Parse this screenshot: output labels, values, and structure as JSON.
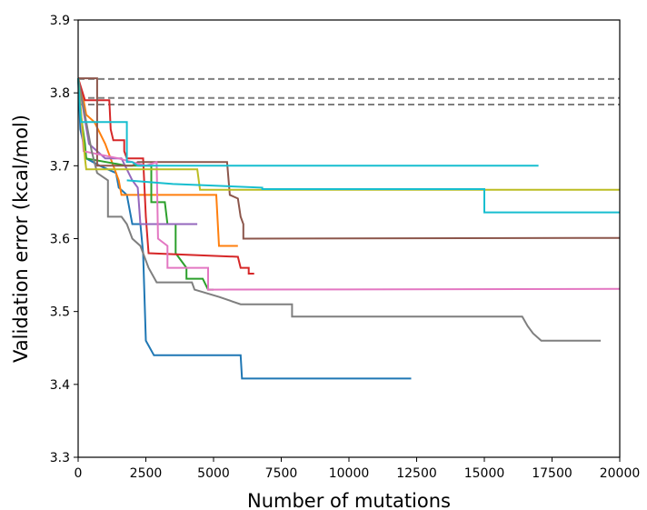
{
  "chart_data": {
    "type": "line",
    "xlabel": "Number of mutations",
    "ylabel": "Validation error (kcal/mol)",
    "xlim": [
      0,
      20000
    ],
    "ylim": [
      3.3,
      3.9
    ],
    "xticks": [
      0,
      2500,
      5000,
      7500,
      10000,
      12500,
      15000,
      17500,
      20000
    ],
    "yticks": [
      3.3,
      3.4,
      3.5,
      3.6,
      3.7,
      3.8,
      3.9
    ],
    "xtick_labels": [
      "0",
      "2500",
      "5000",
      "7500",
      "10000",
      "12500",
      "15000",
      "17500",
      "20000"
    ],
    "ytick_labels": [
      "3.3",
      "3.4",
      "3.5",
      "3.6",
      "3.7",
      "3.8",
      "3.9"
    ],
    "grid": false,
    "reference_lines": [
      {
        "y": 3.819,
        "style": "dashed",
        "color": "#7f7f7f"
      },
      {
        "y": 3.793,
        "style": "dashed",
        "color": "#7f7f7f"
      },
      {
        "y": 3.784,
        "style": "dashed",
        "color": "#7f7f7f"
      }
    ],
    "series": [
      {
        "color": "#1f77b4",
        "points": [
          [
            0,
            3.82
          ],
          [
            80,
            3.75
          ],
          [
            200,
            3.73
          ],
          [
            300,
            3.71
          ],
          [
            800,
            3.7
          ],
          [
            1400,
            3.69
          ],
          [
            1500,
            3.67
          ],
          [
            1800,
            3.66
          ],
          [
            2000,
            3.62
          ],
          [
            2300,
            3.62
          ],
          [
            2400,
            3.58
          ],
          [
            2450,
            3.52
          ],
          [
            2500,
            3.46
          ],
          [
            2800,
            3.44
          ],
          [
            6000,
            3.44
          ],
          [
            6050,
            3.408
          ],
          [
            12300,
            3.408
          ]
        ]
      },
      {
        "color": "#ff7f0e",
        "points": [
          [
            0,
            3.82
          ],
          [
            150,
            3.8
          ],
          [
            300,
            3.77
          ],
          [
            600,
            3.76
          ],
          [
            1000,
            3.73
          ],
          [
            1300,
            3.7
          ],
          [
            1500,
            3.68
          ],
          [
            1600,
            3.66
          ],
          [
            5100,
            3.66
          ],
          [
            5200,
            3.59
          ],
          [
            5900,
            3.59
          ]
        ]
      },
      {
        "color": "#2ca02c",
        "points": [
          [
            0,
            3.82
          ],
          [
            100,
            3.77
          ],
          [
            250,
            3.73
          ],
          [
            300,
            3.71
          ],
          [
            1800,
            3.7
          ],
          [
            2700,
            3.7
          ],
          [
            2700,
            3.65
          ],
          [
            3200,
            3.65
          ],
          [
            3300,
            3.62
          ],
          [
            3600,
            3.62
          ],
          [
            3600,
            3.58
          ],
          [
            4000,
            3.56
          ],
          [
            4000,
            3.545
          ],
          [
            4600,
            3.545
          ],
          [
            4800,
            3.53
          ],
          [
            5000,
            3.53
          ]
        ]
      },
      {
        "color": "#d62728",
        "points": [
          [
            0,
            3.82
          ],
          [
            250,
            3.79
          ],
          [
            1150,
            3.79
          ],
          [
            1200,
            3.75
          ],
          [
            1300,
            3.735
          ],
          [
            1700,
            3.735
          ],
          [
            1700,
            3.72
          ],
          [
            1800,
            3.71
          ],
          [
            2400,
            3.71
          ],
          [
            2500,
            3.63
          ],
          [
            2600,
            3.58
          ],
          [
            5900,
            3.575
          ],
          [
            6000,
            3.56
          ],
          [
            6300,
            3.56
          ],
          [
            6300,
            3.552
          ],
          [
            6500,
            3.552
          ]
        ]
      },
      {
        "color": "#9467bd",
        "points": [
          [
            0,
            3.82
          ],
          [
            400,
            3.73
          ],
          [
            1000,
            3.71
          ],
          [
            1600,
            3.71
          ],
          [
            2000,
            3.68
          ],
          [
            2200,
            3.67
          ],
          [
            2300,
            3.62
          ],
          [
            2900,
            3.62
          ],
          [
            4400,
            3.62
          ]
        ]
      },
      {
        "color": "#8c564b",
        "points": [
          [
            0,
            3.82
          ],
          [
            700,
            3.82
          ],
          [
            700,
            3.7
          ],
          [
            2000,
            3.7
          ],
          [
            2200,
            3.705
          ],
          [
            5500,
            3.705
          ],
          [
            5600,
            3.66
          ],
          [
            5900,
            3.655
          ],
          [
            6000,
            3.63
          ],
          [
            6100,
            3.62
          ],
          [
            6100,
            3.6
          ],
          [
            20000,
            3.601
          ]
        ]
      },
      {
        "color": "#e377c2",
        "points": [
          [
            0,
            3.82
          ],
          [
            200,
            3.72
          ],
          [
            1500,
            3.71
          ],
          [
            2500,
            3.7
          ],
          [
            2900,
            3.705
          ],
          [
            2950,
            3.6
          ],
          [
            3300,
            3.59
          ],
          [
            3300,
            3.56
          ],
          [
            4800,
            3.56
          ],
          [
            4800,
            3.53
          ],
          [
            20000,
            3.531
          ]
        ]
      },
      {
        "color": "#7f7f7f",
        "points": [
          [
            0,
            3.82
          ],
          [
            500,
            3.72
          ],
          [
            700,
            3.69
          ],
          [
            1100,
            3.68
          ],
          [
            1100,
            3.63
          ],
          [
            1600,
            3.63
          ],
          [
            1800,
            3.62
          ],
          [
            2000,
            3.6
          ],
          [
            2300,
            3.59
          ],
          [
            2500,
            3.57
          ],
          [
            2600,
            3.56
          ],
          [
            2900,
            3.54
          ],
          [
            4200,
            3.54
          ],
          [
            4300,
            3.53
          ],
          [
            5200,
            3.52
          ],
          [
            6000,
            3.51
          ],
          [
            7900,
            3.51
          ],
          [
            7900,
            3.493
          ],
          [
            16400,
            3.493
          ],
          [
            16600,
            3.48
          ],
          [
            16800,
            3.47
          ],
          [
            17100,
            3.46
          ],
          [
            19300,
            3.46
          ]
        ]
      },
      {
        "color": "#bcbd22",
        "points": [
          [
            0,
            3.82
          ],
          [
            250,
            3.71
          ],
          [
            300,
            3.695
          ],
          [
            4400,
            3.695
          ],
          [
            4500,
            3.667
          ],
          [
            20000,
            3.667
          ]
        ]
      },
      {
        "color": "#17becf",
        "points": [
          [
            0,
            3.82
          ],
          [
            100,
            3.76
          ],
          [
            1800,
            3.76
          ],
          [
            1800,
            3.705
          ],
          [
            2000,
            3.705
          ],
          [
            2200,
            3.7
          ],
          [
            17000,
            3.7
          ]
        ]
      },
      {
        "color": "#17becf",
        "points": [
          [
            1800,
            3.68
          ],
          [
            3500,
            3.675
          ],
          [
            6800,
            3.67
          ],
          [
            6800,
            3.668
          ],
          [
            15000,
            3.668
          ],
          [
            15000,
            3.636
          ],
          [
            20000,
            3.636
          ]
        ]
      }
    ]
  }
}
